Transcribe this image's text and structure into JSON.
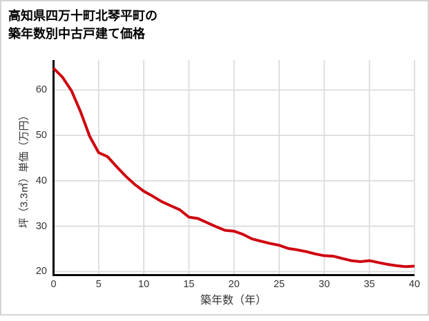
{
  "page": {
    "background": "#ffffff",
    "border_color": "#d4d4d4"
  },
  "title": {
    "line1": "高知県四万十町北琴平町の",
    "line2": "築年数別中古戸建て価格"
  },
  "chart_data": {
    "type": "line",
    "title": "高知県四万十町北琴平町の築年数別中古戸建て価格",
    "xlabel": "築年数（年）",
    "ylabel": "坪（3.3㎡）単価（万円）",
    "x_ticks": [
      0,
      5,
      10,
      15,
      20,
      25,
      30,
      35,
      40
    ],
    "y_ticks": [
      20,
      30,
      40,
      50,
      60
    ],
    "xlim": [
      0,
      40
    ],
    "ylim": [
      19.0,
      66.6
    ],
    "grid": true,
    "legend_position": "none",
    "colors": {
      "line": "#cf040f",
      "gridline": "#dcdcdc",
      "axis": "#000000",
      "tick_text": "#333333"
    },
    "series": [
      {
        "name": "坪単価",
        "x": [
          0,
          1,
          2,
          3,
          4,
          5,
          6,
          7,
          8,
          9,
          10,
          11,
          12,
          13,
          14,
          15,
          16,
          17,
          18,
          19,
          20,
          21,
          22,
          23,
          24,
          25,
          26,
          27,
          28,
          29,
          30,
          31,
          32,
          33,
          34,
          35,
          36,
          37,
          38,
          39,
          40
        ],
        "values": [
          64.8,
          62.8,
          59.8,
          55.2,
          49.8,
          46.2,
          45.3,
          43.1,
          41.0,
          39.2,
          37.7,
          36.6,
          35.4,
          34.5,
          33.6,
          32.0,
          31.7,
          30.8,
          29.9,
          29.1,
          28.9,
          28.2,
          27.2,
          26.7,
          26.2,
          25.8,
          25.1,
          24.8,
          24.4,
          23.9,
          23.5,
          23.4,
          22.9,
          22.4,
          22.2,
          22.4,
          22.0,
          21.6,
          21.3,
          21.1,
          21.2
        ]
      }
    ]
  },
  "layout_note": ""
}
